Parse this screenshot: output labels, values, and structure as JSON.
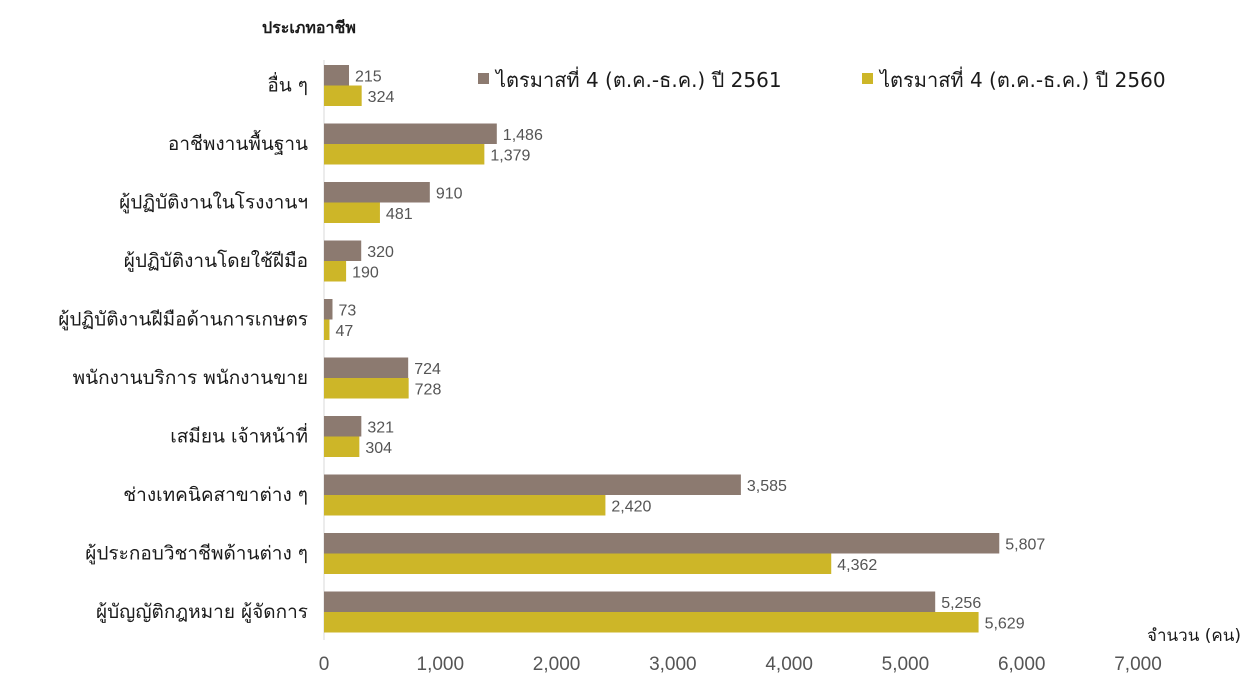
{
  "chart_data": {
    "type": "bar",
    "orientation": "horizontal",
    "title": "ประเภทอาชีพ",
    "xlabel": "จำนวน (คน)",
    "xlim": [
      0,
      7000
    ],
    "xticks": [
      "0",
      "1,000",
      "2,000",
      "3,000",
      "4,000",
      "5,000",
      "6,000",
      "7,000"
    ],
    "grid": false,
    "legend_position": "top-right",
    "categories": [
      "อื่น ๆ",
      "อาชีพงานพื้นฐาน",
      "ผู้ปฏิบัติงานในโรงงานฯ",
      "ผู้ปฏิบัติงานโดยใช้ฝีมือ",
      "ผู้ปฏิบัติงานฝีมือด้านการเกษตร",
      "พนักงานบริการ พนักงานขาย",
      "เสมียน เจ้าหน้าที่",
      "ช่างเทคนิคสาขาต่าง ๆ",
      "ผู้ประกอบวิชาชีพด้านต่าง ๆ",
      "ผู้บัญญัติกฎหมาย ผู้จัดการ"
    ],
    "series": [
      {
        "name": "ไตรมาสที่ 4 (ต.ค.-ธ.ค.) ปี 2561",
        "color": "#8c7a70",
        "values": [
          215,
          1486,
          910,
          320,
          73,
          724,
          321,
          3585,
          5807,
          5256
        ],
        "labels": [
          "215",
          "1,486",
          "910",
          "320",
          "73",
          "724",
          "321",
          "3,585",
          "5,807",
          "5,256"
        ]
      },
      {
        "name": "ไตรมาสที่ 4 (ต.ค.-ธ.ค.) ปี 2560",
        "color": "#cdb628",
        "values": [
          324,
          1379,
          481,
          190,
          47,
          728,
          304,
          2420,
          4362,
          5629
        ],
        "labels": [
          "324",
          "1,379",
          "481",
          "190",
          "47",
          "728",
          "304",
          "2,420",
          "4,362",
          "5,629"
        ]
      }
    ]
  }
}
